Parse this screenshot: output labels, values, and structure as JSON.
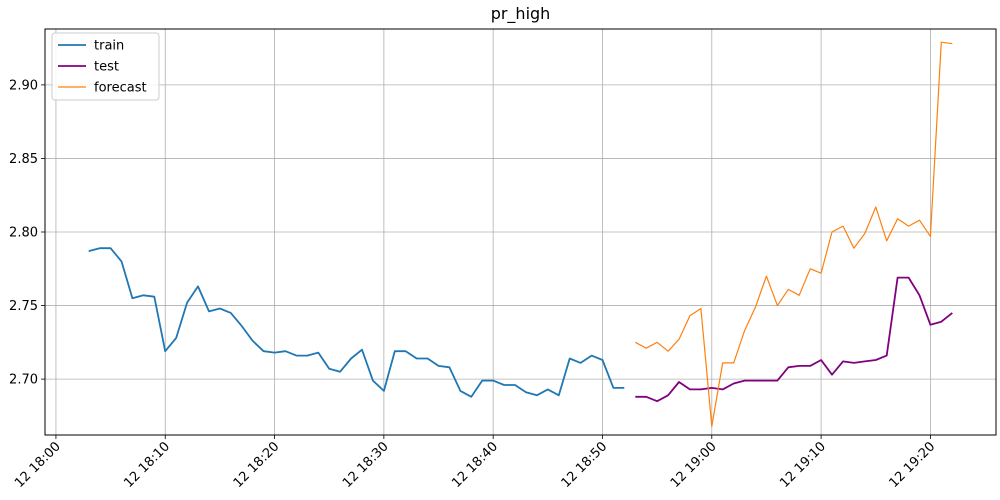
{
  "chart_data": {
    "type": "line",
    "title": "pr_high",
    "xlabel": "",
    "ylabel": "",
    "grid": true,
    "legend_position": "top-left",
    "xlim": [
      "12 17:59:00",
      "12 19:26:00"
    ],
    "ylim": [
      2.662,
      2.938
    ],
    "x_ticks": [
      "12 18:00",
      "12 18:10",
      "12 18:20",
      "12 18:30",
      "12 18:40",
      "12 18:50",
      "12 19:00",
      "12 19:10",
      "12 19:20"
    ],
    "y_ticks": [
      "2.70",
      "2.75",
      "2.80",
      "2.85",
      "2.90"
    ],
    "series": [
      {
        "name": "train",
        "color": "#1f77b4",
        "x": [
          "12 18:03",
          "12 18:04",
          "12 18:05",
          "12 18:06",
          "12 18:07",
          "12 18:08",
          "12 18:09",
          "12 18:10",
          "12 18:11",
          "12 18:12",
          "12 18:13",
          "12 18:14",
          "12 18:15",
          "12 18:16",
          "12 18:17",
          "12 18:18",
          "12 18:19",
          "12 18:20",
          "12 18:21",
          "12 18:22",
          "12 18:23",
          "12 18:24",
          "12 18:25",
          "12 18:26",
          "12 18:27",
          "12 18:28",
          "12 18:29",
          "12 18:30",
          "12 18:31",
          "12 18:32",
          "12 18:33",
          "12 18:34",
          "12 18:35",
          "12 18:36",
          "12 18:37",
          "12 18:38",
          "12 18:39",
          "12 18:40",
          "12 18:41",
          "12 18:42",
          "12 18:43",
          "12 18:44",
          "12 18:45",
          "12 18:46",
          "12 18:47",
          "12 18:48",
          "12 18:49",
          "12 18:50",
          "12 18:51",
          "12 18:52"
        ],
        "values": [
          2.787,
          2.789,
          2.789,
          2.78,
          2.755,
          2.757,
          2.756,
          2.719,
          2.728,
          2.752,
          2.763,
          2.746,
          2.748,
          2.745,
          2.736,
          2.726,
          2.719,
          2.718,
          2.719,
          2.716,
          2.716,
          2.718,
          2.707,
          2.705,
          2.714,
          2.72,
          2.699,
          2.692,
          2.719,
          2.719,
          2.714,
          2.714,
          2.709,
          2.708,
          2.692,
          2.688,
          2.699,
          2.699,
          2.696,
          2.696,
          2.691,
          2.689,
          2.693,
          2.689,
          2.714,
          2.711,
          2.716,
          2.713,
          2.694,
          2.694
        ]
      },
      {
        "name": "test",
        "color": "#800080",
        "x": [
          "12 18:53",
          "12 18:54",
          "12 18:55",
          "12 18:56",
          "12 18:57",
          "12 18:58",
          "12 18:59",
          "12 19:00",
          "12 19:01",
          "12 19:02",
          "12 19:03",
          "12 19:04",
          "12 19:05",
          "12 19:06",
          "12 19:07",
          "12 19:08",
          "12 19:09",
          "12 19:10",
          "12 19:11",
          "12 19:12",
          "12 19:13",
          "12 19:14",
          "12 19:15",
          "12 19:16",
          "12 19:17",
          "12 19:18",
          "12 19:19",
          "12 19:20",
          "12 19:21",
          "12 19:22"
        ],
        "values": [
          2.688,
          2.688,
          2.685,
          2.689,
          2.698,
          2.693,
          2.693,
          2.694,
          2.693,
          2.697,
          2.699,
          2.699,
          2.699,
          2.699,
          2.708,
          2.709,
          2.709,
          2.713,
          2.703,
          2.712,
          2.711,
          2.712,
          2.713,
          2.716,
          2.769,
          2.769,
          2.757,
          2.737,
          2.739,
          2.745
        ]
      },
      {
        "name": "forecast",
        "color": "#ff7f0e",
        "x": [
          "12 18:53",
          "12 18:54",
          "12 18:55",
          "12 18:56",
          "12 18:57",
          "12 18:58",
          "12 18:59",
          "12 19:00",
          "12 19:01",
          "12 19:02",
          "12 19:03",
          "12 19:04",
          "12 19:05",
          "12 19:06",
          "12 19:07",
          "12 19:08",
          "12 19:09",
          "12 19:10",
          "12 19:11",
          "12 19:12",
          "12 19:13",
          "12 19:14",
          "12 19:15",
          "12 19:16",
          "12 19:17",
          "12 19:18",
          "12 19:19",
          "12 19:20",
          "12 19:21",
          "12 19:22"
        ],
        "values": [
          2.725,
          2.721,
          2.725,
          2.719,
          2.727,
          2.743,
          2.748,
          2.668,
          2.711,
          2.711,
          2.733,
          2.749,
          2.77,
          2.75,
          2.761,
          2.757,
          2.775,
          2.772,
          2.8,
          2.804,
          2.789,
          2.799,
          2.817,
          2.794,
          2.809,
          2.804,
          2.808,
          2.797,
          2.929,
          2.928
        ]
      }
    ]
  }
}
